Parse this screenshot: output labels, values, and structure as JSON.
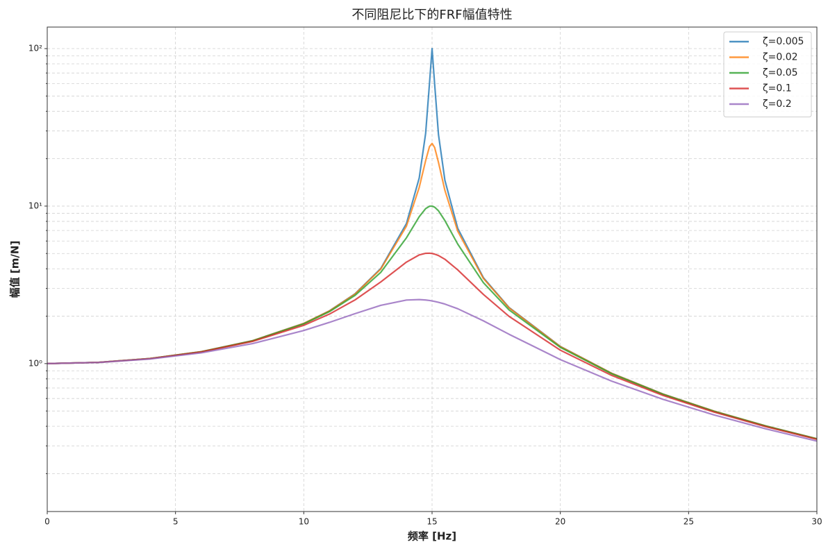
{
  "chart_data": {
    "type": "line",
    "title": "不同阻尼比下的FRF幅值特性",
    "xlabel": "频率 [Hz]",
    "ylabel": "幅值 [m/N]",
    "x": [
      0,
      2,
      4,
      6,
      8,
      10,
      11,
      12,
      13,
      14,
      14.5,
      14.75,
      14.9,
      15,
      15.1,
      15.25,
      15.5,
      16,
      17,
      18,
      20,
      22,
      24,
      26,
      28,
      30
    ],
    "series": [
      {
        "name": "ζ=0.005",
        "color": "#1f77b4",
        "values": [
          1,
          1.0181,
          1.0766,
          1.1905,
          1.3975,
          1.7999,
          2.1632,
          2.7771,
          4.0154,
          7.7382,
          15.091,
          28.99,
          60.27,
          100,
          59.75,
          28.48,
          14.585,
          7.2362,
          3.5128,
          2.2719,
          1.2856,
          0.8687,
          0.641,
          0.4989,
          0.4025,
          0.3333
        ]
      },
      {
        "name": "ζ=0.02",
        "color": "#ff7f0e",
        "values": [
          1,
          1.0181,
          1.0765,
          1.1903,
          1.3969,
          1.7979,
          2.1591,
          2.7669,
          3.9794,
          7.4523,
          13.139,
          19.46,
          23.87,
          25,
          23.57,
          18.95,
          12.596,
          6.9332,
          3.4719,
          2.2593,
          1.2827,
          0.8676,
          0.6405,
          0.4986,
          0.4023,
          0.3332
        ]
      },
      {
        "name": "ζ=0.05",
        "color": "#2ca02c",
        "values": [
          1,
          1.018,
          1.0761,
          1.1891,
          1.3937,
          1.7872,
          2.1367,
          2.7116,
          3.7944,
          6.2841,
          8.5617,
          9.639,
          9.978,
          10,
          9.847,
          9.339,
          8.0919,
          5.7391,
          3.266,
          2.1926,
          1.2672,
          0.8618,
          0.6377,
          0.497,
          0.4014,
          0.3326
        ]
      },
      {
        "name": "ζ=0.1",
        "color": "#d62728",
        "values": [
          1,
          1.0177,
          1.0748,
          1.1851,
          1.3822,
          1.7503,
          2.0621,
          2.5384,
          3.2971,
          4.4084,
          4.8984,
          5.0144,
          5.0223,
          5,
          4.9559,
          4.8522,
          4.5977,
          3.9377,
          2.7494,
          1.9952,
          1.2162,
          0.8418,
          0.6279,
          0.4916,
          0.398,
          0.3304
        ]
      },
      {
        "name": "ζ=0.2",
        "color": "#9467bd",
        "values": [
          1,
          1.0166,
          1.0695,
          1.1695,
          1.3393,
          1.6228,
          1.8267,
          2.0761,
          2.3432,
          2.5319,
          2.5498,
          2.5334,
          2.5154,
          2.5,
          2.4821,
          2.4507,
          2.3875,
          2.2303,
          1.8685,
          1.5357,
          1.0604,
          0.774,
          0.5931,
          0.4715,
          0.3855,
          0.3221
        ]
      }
    ],
    "xlim": [
      0,
      30
    ],
    "xticks": [
      0,
      5,
      10,
      15,
      20,
      25,
      30
    ],
    "ylim": [
      0.115,
      137
    ],
    "log_y": true,
    "yticks": [
      {
        "value": 1,
        "label": "10⁰"
      },
      {
        "value": 10,
        "label": "10¹"
      },
      {
        "value": 100,
        "label": "10²"
      }
    ],
    "yminorticks": [
      0.2,
      0.3,
      0.4,
      0.5,
      0.6,
      0.7,
      0.8,
      0.9,
      2,
      3,
      4,
      5,
      6,
      7,
      8,
      9,
      20,
      30,
      40,
      50,
      60,
      70,
      80,
      90
    ],
    "grid": true,
    "legend": "upper right"
  }
}
